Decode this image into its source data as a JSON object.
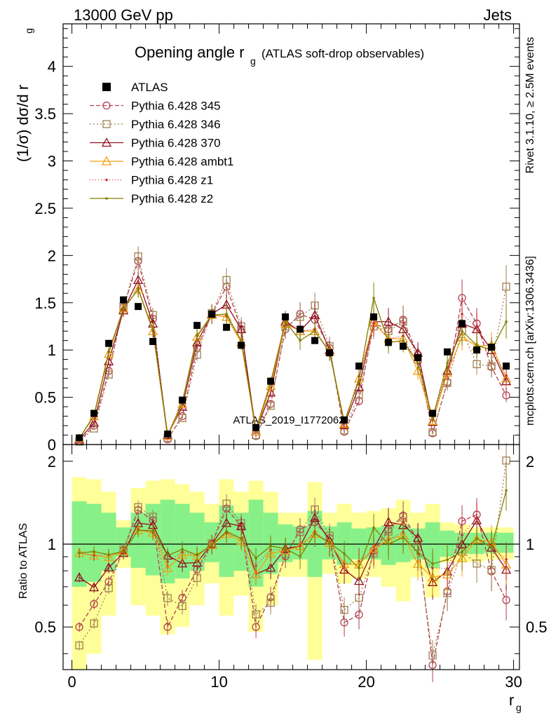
{
  "header": {
    "left": "13000 GeV pp",
    "right": "Jets"
  },
  "side_labels": {
    "rivet": "Rivet 3.1.10, ≥ 2.5M events",
    "mcplots": "mcplots.cern.ch [arXiv:1306.3436]"
  },
  "chart_data": {
    "type": "line",
    "title_main": "Opening angle r",
    "title_sub": "g",
    "title_extra": "(ATLAS soft-drop observables)",
    "watermark": "ATLAS_2019_I1772062",
    "xlabel": "r",
    "xlabel_sub": "g",
    "ylabel": "(1/σ) dσ/d r",
    "ylabel_sub": "g",
    "ratio_ylabel": "Ratio to ATLAS",
    "xlim": [
      -0.6,
      30.4
    ],
    "ylim": [
      0,
      4.45
    ],
    "ratio_ylim": [
      0.35,
      2.3
    ],
    "ratio_log": true,
    "x_ticks": [
      "0",
      "10",
      "20",
      "30"
    ],
    "x_tick_values": [
      0,
      10,
      20,
      30
    ],
    "y_ticks": [
      "0",
      "0.5",
      "1",
      "1.5",
      "2",
      "2.5",
      "3",
      "3.5",
      "4"
    ],
    "y_tick_values": [
      0,
      0.5,
      1,
      1.5,
      2,
      2.5,
      3,
      3.5,
      4
    ],
    "ratio_ticks": [
      "0.5",
      "1",
      "2"
    ],
    "ratio_tick_values": [
      0.5,
      1,
      2
    ],
    "x": [
      0.5,
      1.5,
      2.5,
      3.5,
      4.5,
      5.5,
      6.5,
      7.5,
      8.5,
      9.5,
      10.5,
      11.5,
      12.5,
      13.5,
      14.5,
      15.5,
      16.5,
      17.5,
      18.5,
      19.5,
      20.5,
      21.5,
      22.5,
      23.5,
      24.5,
      25.5,
      26.5,
      27.5,
      28.5,
      29.5
    ],
    "band_edges": [
      0,
      1,
      2,
      3,
      4,
      5,
      6,
      7,
      8,
      9,
      10,
      11,
      12,
      13,
      14,
      15,
      16,
      17,
      18,
      19,
      20,
      21,
      22,
      23,
      24,
      25,
      26,
      27,
      28,
      29,
      30
    ],
    "data": {
      "name": "ATLAS",
      "values": [
        0.07,
        0.33,
        1.07,
        1.53,
        1.46,
        1.09,
        0.11,
        0.47,
        1.26,
        1.38,
        1.24,
        1.05,
        0.18,
        0.67,
        1.35,
        1.22,
        1.1,
        0.97,
        0.26,
        0.83,
        1.35,
        1.08,
        1.04,
        0.92,
        0.33,
        0.98,
        1.28,
        1.0,
        1.03,
        0.83
      ]
    },
    "ratio_band_inner": [
      [
        0.7,
        1.43
      ],
      [
        0.73,
        1.4
      ],
      [
        0.8,
        1.3
      ],
      [
        0.9,
        1.15
      ],
      [
        0.82,
        1.3
      ],
      [
        0.77,
        1.4
      ],
      [
        0.72,
        1.45
      ],
      [
        0.75,
        1.4
      ],
      [
        0.8,
        1.3
      ],
      [
        0.86,
        1.2
      ],
      [
        0.76,
        1.38
      ],
      [
        0.8,
        1.3
      ],
      [
        0.7,
        1.45
      ],
      [
        0.78,
        1.3
      ],
      [
        0.86,
        1.18
      ],
      [
        0.88,
        1.16
      ],
      [
        0.76,
        1.32
      ],
      [
        0.88,
        1.16
      ],
      [
        0.84,
        1.2
      ],
      [
        0.88,
        1.14
      ],
      [
        0.88,
        1.15
      ],
      [
        0.84,
        1.17
      ],
      [
        0.86,
        1.17
      ],
      [
        0.88,
        1.14
      ],
      [
        0.82,
        1.2
      ],
      [
        0.9,
        1.12
      ],
      [
        0.92,
        1.1
      ],
      [
        0.92,
        1.1
      ],
      [
        0.93,
        1.1
      ],
      [
        0.93,
        1.1
      ]
    ],
    "ratio_band_outer": [
      [
        0.35,
        1.75
      ],
      [
        0.4,
        1.72
      ],
      [
        0.55,
        1.55
      ],
      [
        0.82,
        1.22
      ],
      [
        0.6,
        1.6
      ],
      [
        0.55,
        1.7
      ],
      [
        0.47,
        1.72
      ],
      [
        0.5,
        1.65
      ],
      [
        0.6,
        1.55
      ],
      [
        0.72,
        1.4
      ],
      [
        0.55,
        1.72
      ],
      [
        0.65,
        1.55
      ],
      [
        0.48,
        1.7
      ],
      [
        0.6,
        1.55
      ],
      [
        0.76,
        1.3
      ],
      [
        0.76,
        1.3
      ],
      [
        0.38,
        1.68
      ],
      [
        0.78,
        1.3
      ],
      [
        0.72,
        1.4
      ],
      [
        0.75,
        1.3
      ],
      [
        0.76,
        1.32
      ],
      [
        0.7,
        1.35
      ],
      [
        0.62,
        1.45
      ],
      [
        0.76,
        1.3
      ],
      [
        0.64,
        1.4
      ],
      [
        0.86,
        1.2
      ],
      [
        0.86,
        1.18
      ],
      [
        0.86,
        1.15
      ],
      [
        0.88,
        1.15
      ],
      [
        0.88,
        1.15
      ]
    ],
    "series": [
      {
        "name": "Pythia 6.428 345",
        "color": "#b04050",
        "dash": "6,3",
        "marker": "circle",
        "values": [
          0.035,
          0.2,
          0.78,
          1.45,
          1.94,
          1.33,
          0.055,
          0.3,
          1.02,
          1.38,
          1.67,
          1.22,
          0.09,
          0.43,
          1.22,
          1.38,
          1.32,
          1.02,
          0.135,
          0.46,
          1.28,
          1.22,
          1.32,
          0.95,
          0.12,
          0.66,
          1.55,
          1.28,
          0.82,
          0.52
        ]
      },
      {
        "name": "Pythia 6.428 346",
        "color": "#a08050",
        "dash": "2,3",
        "marker": "square",
        "values": [
          0.03,
          0.17,
          0.74,
          1.46,
          1.99,
          1.37,
          0.07,
          0.28,
          0.95,
          1.39,
          1.74,
          1.25,
          0.1,
          0.41,
          1.25,
          1.35,
          1.47,
          1.04,
          0.15,
          0.53,
          1.25,
          1.2,
          1.3,
          0.9,
          0.13,
          0.65,
          1.2,
          0.85,
          0.83,
          1.67
        ]
      },
      {
        "name": "Pythia 6.428 370",
        "color": "#901020",
        "dash": "",
        "marker": "triangle",
        "values": [
          0.053,
          0.23,
          0.88,
          1.42,
          1.74,
          1.28,
          0.1,
          0.4,
          1.08,
          1.38,
          1.48,
          1.22,
          0.14,
          0.55,
          1.3,
          1.2,
          1.37,
          1.0,
          0.21,
          0.61,
          1.3,
          1.3,
          1.22,
          0.97,
          0.24,
          0.78,
          1.28,
          1.22,
          1.0,
          0.67
        ]
      },
      {
        "name": "Pythia 6.428 ambt1",
        "color": "#f0a010",
        "dash": "",
        "marker": "triangle",
        "values": [
          0.065,
          0.3,
          0.96,
          1.44,
          1.64,
          1.2,
          0.09,
          0.43,
          1.14,
          1.37,
          1.35,
          1.08,
          0.14,
          0.62,
          1.28,
          1.2,
          1.2,
          0.98,
          0.22,
          0.7,
          1.3,
          1.12,
          1.12,
          0.78,
          0.25,
          0.76,
          1.14,
          1.04,
          1.05,
          0.7
        ]
      },
      {
        "name": "Pythia 6.428 z1",
        "color": "#d03030",
        "dash": "1,3",
        "marker": "dot",
        "values": [
          0.065,
          0.3,
          0.98,
          1.42,
          1.65,
          1.2,
          0.095,
          0.44,
          1.15,
          1.37,
          1.36,
          1.1,
          0.15,
          0.64,
          1.28,
          1.2,
          1.22,
          0.98,
          0.22,
          0.72,
          1.28,
          1.12,
          1.15,
          0.85,
          0.27,
          0.8,
          1.38,
          1.24,
          1.0,
          0.73
        ]
      },
      {
        "name": "Pythia 6.428 z2",
        "color": "#808000",
        "dash": "",
        "marker": "dot",
        "values": [
          0.065,
          0.31,
          0.98,
          1.44,
          1.64,
          1.22,
          0.1,
          0.45,
          1.15,
          1.37,
          1.38,
          1.1,
          0.16,
          0.66,
          1.3,
          1.1,
          1.2,
          0.98,
          0.24,
          0.68,
          1.55,
          1.08,
          1.1,
          0.86,
          0.28,
          0.86,
          1.2,
          1.05,
          1.0,
          1.3
        ]
      }
    ]
  }
}
